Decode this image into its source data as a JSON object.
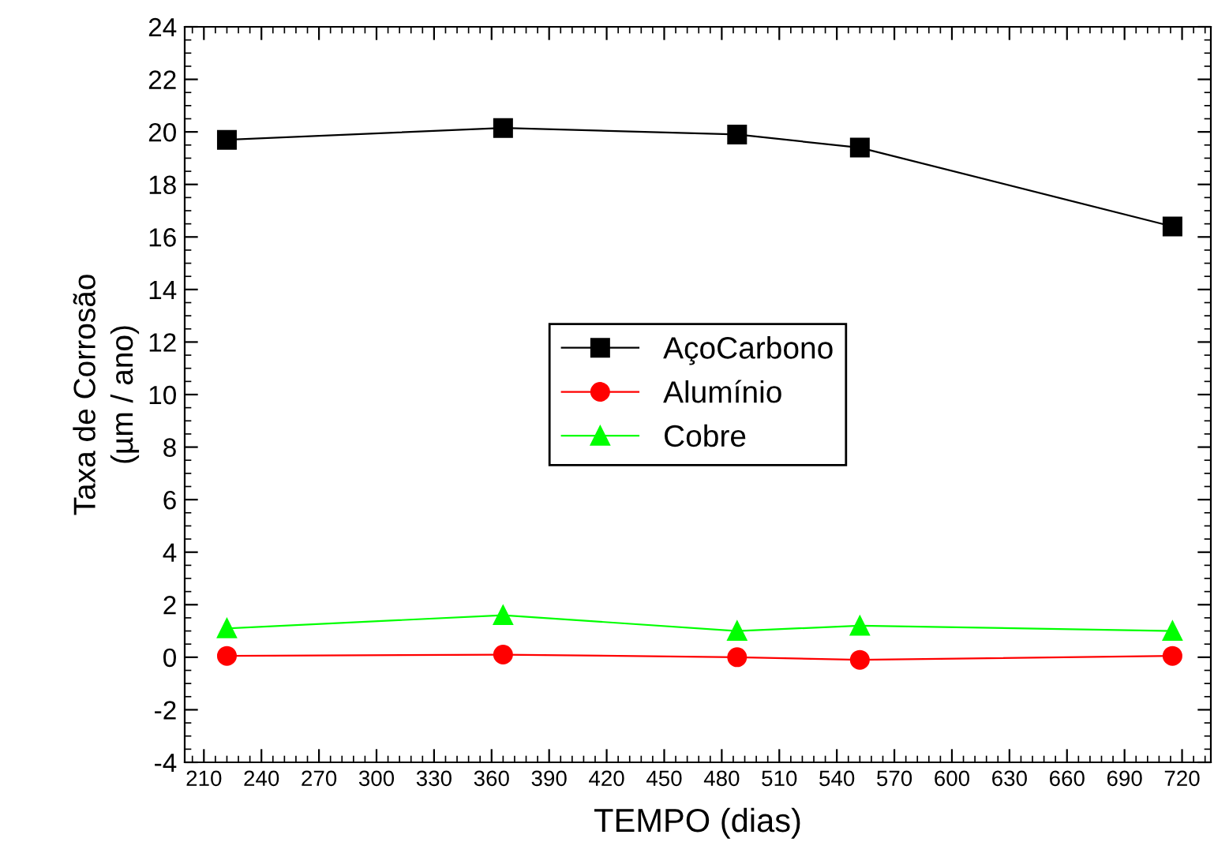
{
  "chart_data": {
    "type": "line",
    "xlabel": "TEMPO (dias)",
    "ylabel": "Taxa de Corrosão\n(µm / ano)",
    "x": [
      222,
      366,
      488,
      552,
      715
    ],
    "series": [
      {
        "name": "AçoCarbono",
        "color": "#000000",
        "marker": "square",
        "values": [
          19.7,
          20.15,
          19.9,
          19.4,
          16.4
        ]
      },
      {
        "name": "Alumínio",
        "color": "#ff0000",
        "marker": "circle",
        "values": [
          0.05,
          0.1,
          0.0,
          -0.1,
          0.05
        ]
      },
      {
        "name": "Cobre",
        "color": "#00ff00",
        "marker": "triangle",
        "values": [
          1.1,
          1.6,
          1.0,
          1.2,
          1.0
        ]
      }
    ],
    "xlim": [
      200,
      735
    ],
    "xticks": [
      210,
      240,
      270,
      300,
      330,
      360,
      390,
      420,
      450,
      480,
      510,
      540,
      570,
      600,
      630,
      660,
      690,
      720
    ],
    "ylim": [
      -4,
      24
    ],
    "yticks": [
      -4,
      -2,
      0,
      2,
      4,
      6,
      8,
      10,
      12,
      14,
      16,
      18,
      20,
      22,
      24
    ],
    "grid": false,
    "legend": "center",
    "line_style": "solid"
  }
}
